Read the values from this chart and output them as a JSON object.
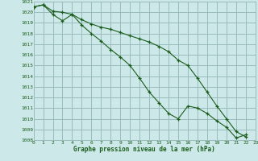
{
  "title": "Graphe pression niveau de la mer (hPa)",
  "bg_color": "#cce8e8",
  "grid_color": "#99bbbb",
  "line_color": "#1a5c1a",
  "x_min": 0,
  "x_max": 23,
  "y_min": 1008,
  "y_max": 1021,
  "series1": [
    1020.5,
    1020.7,
    1020.1,
    1020.0,
    1019.8,
    1019.3,
    1018.9,
    1018.6,
    1018.4,
    1018.1,
    1017.8,
    1017.5,
    1017.2,
    1016.8,
    1016.3,
    1015.5,
    1015.0,
    1013.8,
    1012.5,
    1011.2,
    1010.0,
    1008.8,
    1008.3
  ],
  "series2": [
    1020.5,
    1020.7,
    1019.8,
    1019.2,
    1019.8,
    1018.8,
    1018.0,
    1017.3,
    1016.5,
    1015.8,
    1015.0,
    1013.8,
    1012.5,
    1011.5,
    1010.5,
    1010.0,
    1011.2,
    1011.0,
    1010.5,
    1009.8,
    1009.2,
    1008.2,
    1008.5
  ]
}
